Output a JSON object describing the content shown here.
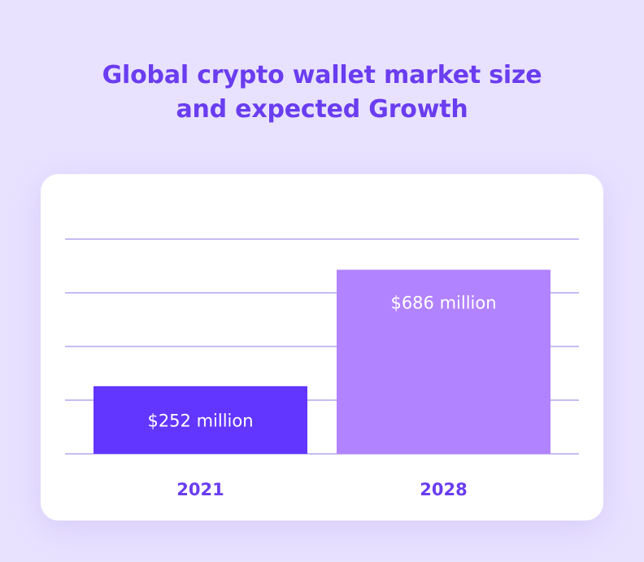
{
  "title_lines": [
    "Global crypto wallet market size",
    "and expected Growth"
  ],
  "chart_data": {
    "type": "bar",
    "title": "Global crypto wallet market size and expected Growth",
    "categories": [
      "2021",
      "2028"
    ],
    "values": [
      252,
      686
    ],
    "value_labels": [
      "$252 million",
      "$686 million"
    ],
    "units": "million USD",
    "ylim": [
      0,
      800
    ],
    "grid": true,
    "colors": [
      "#6236ff",
      "#b283ff"
    ]
  },
  "colors": {
    "background": "#e9e2ff",
    "title": "#6a3df0",
    "gridline": "#b6a6f2",
    "card": "#ffffff"
  }
}
